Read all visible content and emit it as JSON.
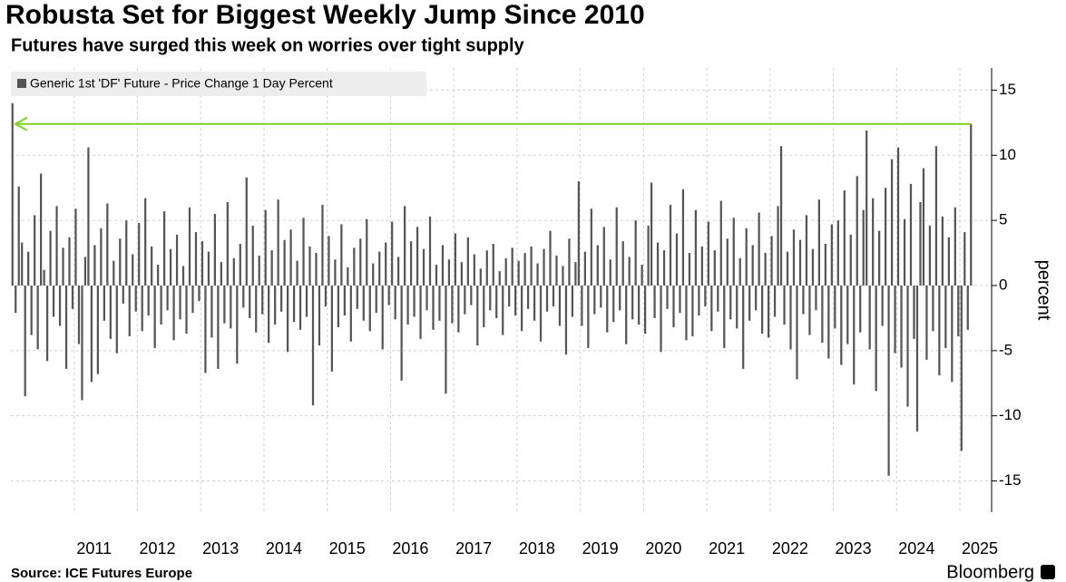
{
  "chart_data": {
    "type": "bar",
    "title": "Robusta Set for Biggest Weekly Jump Since 2010",
    "subtitle": "Futures have surged this week on worries over tight supply",
    "y_label": "percent",
    "source": "Source: ICE Futures Europe",
    "brand": "Bloomberg",
    "ylim": [
      -17.4,
      16.7
    ],
    "yticks": [
      15,
      10,
      5,
      0,
      -5,
      -10,
      -15
    ],
    "grid": true,
    "legend": "upper left",
    "categories": [
      null,
      null,
      null,
      null,
      null,
      null,
      null,
      null,
      null,
      null,
      null,
      null,
      null,
      null,
      null,
      null,
      null,
      null,
      null,
      null,
      "2011",
      null,
      null,
      null,
      null,
      null,
      null,
      null,
      null,
      null,
      null,
      null,
      null,
      null,
      null,
      null,
      null,
      null,
      null,
      null,
      "2012",
      null,
      null,
      null,
      null,
      null,
      null,
      null,
      null,
      null,
      null,
      null,
      null,
      null,
      null,
      null,
      null,
      null,
      null,
      null,
      "2013",
      null,
      null,
      null,
      null,
      null,
      null,
      null,
      null,
      null,
      null,
      null,
      null,
      null,
      null,
      null,
      null,
      null,
      null,
      null,
      "2014",
      null,
      null,
      null,
      null,
      null,
      null,
      null,
      null,
      null,
      null,
      null,
      null,
      null,
      null,
      null,
      null,
      null,
      null,
      null,
      "2015",
      null,
      null,
      null,
      null,
      null,
      null,
      null,
      null,
      null,
      null,
      null,
      null,
      null,
      null,
      null,
      null,
      null,
      null,
      null,
      "2016",
      null,
      null,
      null,
      null,
      null,
      null,
      null,
      null,
      null,
      null,
      null,
      null,
      null,
      null,
      null,
      null,
      null,
      null,
      null,
      "2017",
      null,
      null,
      null,
      null,
      null,
      null,
      null,
      null,
      null,
      null,
      null,
      null,
      null,
      null,
      null,
      null,
      null,
      null,
      null,
      "2018",
      null,
      null,
      null,
      null,
      null,
      null,
      null,
      null,
      null,
      null,
      null,
      null,
      null,
      null,
      null,
      null,
      null,
      null,
      null,
      "2019",
      null,
      null,
      null,
      null,
      null,
      null,
      null,
      null,
      null,
      null,
      null,
      null,
      null,
      null,
      null,
      null,
      null,
      null,
      null,
      "2020",
      null,
      null,
      null,
      null,
      null,
      null,
      null,
      null,
      null,
      null,
      null,
      null,
      null,
      null,
      null,
      null,
      null,
      null,
      null,
      "2021",
      null,
      null,
      null,
      null,
      null,
      null,
      null,
      null,
      null,
      null,
      null,
      null,
      null,
      null,
      null,
      null,
      null,
      null,
      null,
      "2022",
      null,
      null,
      null,
      null,
      null,
      null,
      null,
      null,
      null,
      null,
      null,
      null,
      null,
      null,
      null,
      null,
      null,
      null,
      null,
      "2023",
      null,
      null,
      null,
      null,
      null,
      null,
      null,
      null,
      null,
      null,
      null,
      null,
      null,
      null,
      null,
      null,
      null,
      null,
      null,
      "2024",
      null,
      null,
      null,
      null,
      null,
      null,
      null,
      null,
      null,
      null,
      null,
      null,
      null,
      null,
      null,
      null,
      null,
      null,
      null,
      "2025",
      null,
      null,
      null
    ],
    "series": [
      {
        "name": "Generic 1st 'DF' Future - Price Change 1 Day Percent",
        "color": "#555555",
        "values": [
          14.0,
          -2.1,
          7.6,
          3.3,
          -8.5,
          2.6,
          -3.8,
          5.4,
          -4.9,
          8.6,
          1.2,
          -5.8,
          4.2,
          -2.4,
          6.1,
          -3.1,
          2.9,
          -6.4,
          3.7,
          -1.8,
          5.9,
          -4.5,
          -8.8,
          2.2,
          10.6,
          -7.4,
          3.1,
          -6.8,
          4.4,
          -2.7,
          6.3,
          -4.1,
          1.9,
          -5.2,
          3.6,
          -1.4,
          5.0,
          -3.9,
          2.4,
          -2.0,
          4.8,
          -3.5,
          6.7,
          -2.3,
          3.0,
          -4.8,
          1.6,
          -3.0,
          5.7,
          -1.9,
          2.8,
          -4.2,
          3.9,
          -2.6,
          1.5,
          -3.7,
          6.0,
          -2.1,
          4.1,
          -1.2,
          3.4,
          -6.7,
          2.6,
          -4.0,
          5.5,
          -6.4,
          1.8,
          -2.9,
          6.4,
          -3.3,
          2.1,
          -6.0,
          3.2,
          -1.7,
          8.3,
          -2.5,
          4.6,
          -3.6,
          2.3,
          -2.2,
          5.8,
          -4.4,
          2.7,
          -3.0,
          6.6,
          -2.0,
          3.5,
          -5.1,
          4.3,
          -2.8,
          1.9,
          -3.4,
          5.2,
          -2.4,
          3.0,
          -9.2,
          2.5,
          -4.6,
          6.2,
          -1.6,
          3.8,
          -6.6,
          2.0,
          -3.2,
          4.7,
          -2.3,
          1.4,
          -4.3,
          2.9,
          -1.8,
          3.6,
          -2.7,
          5.1,
          -3.5,
          1.7,
          -2.1,
          2.6,
          -4.9,
          3.3,
          -1.5,
          4.9,
          -2.6,
          2.2,
          -7.3,
          6.1,
          -3.0,
          3.4,
          -2.4,
          4.5,
          -4.1,
          2.8,
          -1.9,
          5.3,
          -3.4,
          1.6,
          -2.7,
          3.1,
          -8.3,
          2.0,
          -2.9,
          4.0,
          -3.6,
          1.8,
          -2.2,
          3.7,
          -1.5,
          2.4,
          -4.6,
          1.3,
          -3.2,
          2.7,
          -1.9,
          3.2,
          -2.5,
          1.1,
          -3.8,
          2.1,
          -1.6,
          2.9,
          -2.3,
          1.9,
          -3.5,
          2.5,
          -1.8,
          3.0,
          -2.7,
          1.7,
          -4.3,
          2.8,
          -2.0,
          4.2,
          -1.6,
          2.3,
          -3.1,
          1.5,
          -5.3,
          3.6,
          -2.4,
          1.8,
          8.0,
          -3.1,
          2.6,
          -4.8,
          5.9,
          -2.2,
          3.1,
          -1.7,
          4.5,
          -3.6,
          2.0,
          -2.8,
          6.0,
          -1.9,
          3.4,
          -4.5,
          2.2,
          -2.6,
          5.0,
          -3.0,
          1.6,
          -3.7,
          4.6,
          7.9,
          -2.5,
          3.3,
          -5.1,
          2.7,
          -1.8,
          6.2,
          -3.2,
          4.0,
          -2.1,
          7.4,
          -4.2,
          2.5,
          -3.9,
          5.8,
          -2.3,
          3.0,
          -1.6,
          4.9,
          -3.5,
          2.7,
          -2.0,
          6.5,
          -4.8,
          3.6,
          -2.6,
          5.2,
          -3.3,
          2.1,
          -6.4,
          4.4,
          -2.7,
          3.1,
          -1.9,
          5.6,
          -3.7,
          2.5,
          -4.0,
          3.8,
          -2.4,
          6.1,
          10.7,
          -3.0,
          2.6,
          -4.9,
          4.3,
          -7.2,
          3.5,
          -2.2,
          5.4,
          -3.8,
          2.8,
          -1.9,
          6.6,
          -4.4,
          3.2,
          -5.6,
          4.7,
          -3.3,
          5.0,
          -6.1,
          7.3,
          -4.5,
          3.9,
          -7.6,
          8.4,
          -3.6,
          5.8,
          11.9,
          -4.9,
          6.7,
          -8.1,
          4.2,
          -3.1,
          7.5,
          -14.6,
          9.7,
          -5.2,
          10.6,
          -6.3,
          5.1,
          -9.3,
          7.8,
          -4.1,
          -11.2,
          6.4,
          9.0,
          -5.7,
          4.6,
          -3.5,
          10.7,
          -6.9,
          5.3,
          -4.8,
          3.7,
          -7.4,
          6.0,
          -3.9,
          -12.7,
          4.1,
          -3.4,
          12.4
        ]
      }
    ]
  }
}
